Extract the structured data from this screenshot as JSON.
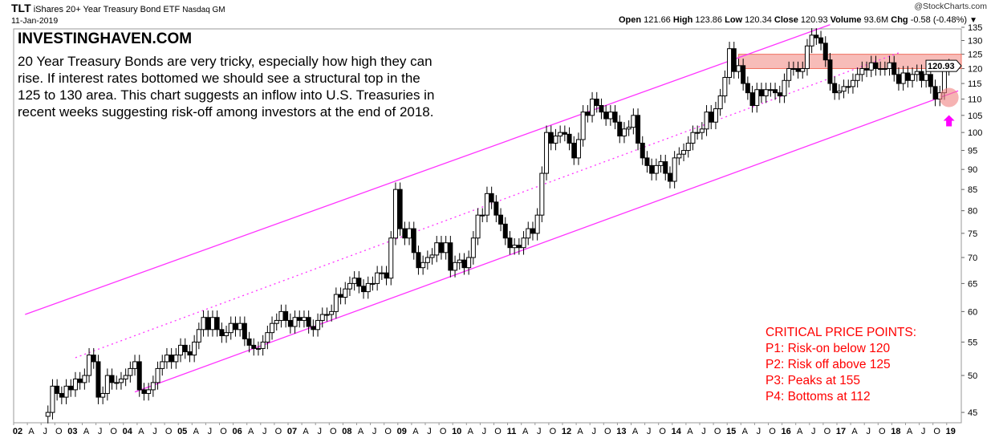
{
  "header": {
    "symbol": "TLT",
    "name": "iShares 20+ Year Treasury Bond ETF",
    "exchange": "Nasdaq GM",
    "date": "11-Jan-2019",
    "copyright": "@StockCharts.com",
    "quote": {
      "open_label": "Open",
      "open": "121.66",
      "high_label": "High",
      "high": "123.86",
      "low_label": "Low",
      "low": "120.34",
      "close_label": "Close",
      "close": "120.93",
      "volume_label": "Volume",
      "volume": "93.6M",
      "chg_label": "Chg",
      "chg": "-0.58 (-0.48%)"
    }
  },
  "annotation": {
    "brand": "INVESTINGHAVEN.COM",
    "text": "20 Year Treasury Bonds are very tricky, especially how high they can rise. If interest rates bottomed we should see a structural top in the 125 to 130 area. This chart suggests an inflow into U.S. Treasuries in recent weeks suggesting risk-off among investors at the end of 2018.",
    "critical_title": "CRITICAL PRICE POINTS:",
    "critical_points": [
      "P1: Risk-on below 120",
      "P2: Risk off above 125",
      "P3: Peaks at 155",
      "P4: Bottoms at 112"
    ]
  },
  "colors": {
    "trendline": "#ff33ff",
    "band": "#f4a09a",
    "circle": "#f08080",
    "arrow": "#ff00ff",
    "up": "#ffffff",
    "down": "#000000",
    "critical_text": "#ff0000"
  },
  "chart_data": {
    "type": "candlestick",
    "interval": "monthly",
    "y_scale": "log",
    "ylim": [
      44,
      137
    ],
    "y_ticks": [
      45,
      50,
      55,
      60,
      65,
      70,
      75,
      80,
      85,
      90,
      95,
      100,
      105,
      110,
      115,
      120,
      125,
      130,
      135
    ],
    "x_ticks": [
      "02",
      "A",
      "J",
      "O",
      "03",
      "A",
      "J",
      "O",
      "04",
      "A",
      "J",
      "O",
      "05",
      "A",
      "J",
      "O",
      "06",
      "A",
      "J",
      "O",
      "07",
      "A",
      "J",
      "O",
      "08",
      "A",
      "J",
      "O",
      "09",
      "A",
      "J",
      "O",
      "10",
      "A",
      "J",
      "O",
      "11",
      "A",
      "J",
      "O",
      "12",
      "A",
      "J",
      "O",
      "13",
      "A",
      "J",
      "O",
      "14",
      "A",
      "J",
      "O",
      "15",
      "A",
      "J",
      "O",
      "16",
      "A",
      "J",
      "O",
      "17",
      "A",
      "J",
      "O",
      "18",
      "A",
      "J",
      "O",
      "19"
    ],
    "start": "2002-08",
    "first_open": 44.5,
    "close": [
      45,
      48.5,
      47.5,
      47,
      48.5,
      48,
      49.5,
      49,
      50,
      53,
      52,
      47,
      47.5,
      50,
      49,
      49,
      49.5,
      50,
      51,
      52,
      48,
      47.5,
      48,
      49,
      51,
      52,
      53,
      52,
      53,
      54.5,
      53.5,
      53,
      55,
      57,
      59,
      57,
      59,
      57,
      56,
      56.5,
      58,
      57,
      58,
      55.5,
      54.5,
      54,
      54,
      55,
      56.5,
      58,
      58.5,
      60,
      58.5,
      57.5,
      59,
      58.5,
      59,
      57.5,
      57,
      58.5,
      59.5,
      59.5,
      60,
      63,
      62.5,
      64,
      65,
      66,
      64.5,
      63.5,
      65,
      65,
      67,
      67,
      66,
      74,
      85,
      76,
      74,
      76,
      71,
      68,
      69,
      70,
      70.5,
      73,
      71,
      73,
      67.5,
      69,
      69.5,
      68,
      70,
      74,
      79,
      79,
      84,
      82,
      79,
      77,
      74,
      72,
      72.5,
      72,
      74,
      76,
      75,
      79,
      89,
      100,
      97,
      99,
      100,
      99.5,
      97,
      93,
      98,
      106,
      105,
      110,
      108,
      106,
      104,
      106,
      103,
      99,
      101,
      101.5,
      105,
      97,
      93,
      91,
      89,
      91,
      92,
      89,
      87,
      93,
      94,
      95,
      97,
      100,
      100,
      101,
      106,
      103,
      107,
      111,
      117,
      127,
      119,
      121,
      115,
      112,
      108,
      113,
      111,
      113,
      113,
      112,
      111,
      116,
      120,
      120,
      119,
      120,
      128,
      132,
      131,
      129,
      123,
      115,
      112,
      112.5,
      114,
      114,
      116,
      118,
      120,
      119.5,
      122,
      120,
      120,
      120,
      122,
      118,
      115,
      118.5,
      116,
      118,
      119,
      116,
      118,
      114,
      110,
      112,
      120,
      120.93
    ],
    "last_price_label": "120.93",
    "overlays": {
      "upper_channel": {
        "style": "solid",
        "from": [
          "2002-03",
          59.5
        ],
        "to": [
          "2016-11",
          136
        ]
      },
      "mid_channel": {
        "style": "dotted",
        "from": [
          "2003-02",
          52.6
        ],
        "to": [
          "2018-02",
          125.5
        ]
      },
      "lower_channel": {
        "style": "solid",
        "from": [
          "2004-03",
          47.7
        ],
        "to": [
          "2019-03",
          112.6
        ]
      },
      "resistance_band": {
        "from": "2015-03",
        "low": 120,
        "high": 125
      },
      "highlight_circle": {
        "date": "2019-01",
        "price": 110.5
      },
      "arrow": {
        "date": "2019-01",
        "direction": "up"
      }
    }
  }
}
